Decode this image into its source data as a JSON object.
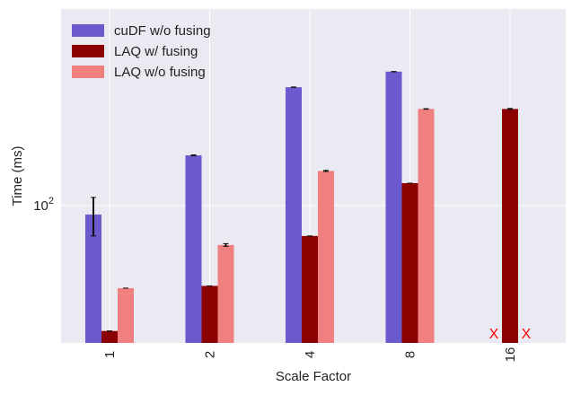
{
  "chart_data": {
    "type": "bar",
    "title": "",
    "xlabel": "Scale Factor",
    "ylabel": "Time (ms)",
    "yscale": "log",
    "ylim": [
      20,
      1000
    ],
    "ytick_values": [
      100
    ],
    "ytick_labels": [
      "10^2"
    ],
    "categories": [
      "1",
      "2",
      "4",
      "8",
      "16"
    ],
    "series": [
      {
        "name": "cuDF w/o fusing",
        "color": "#6a5acd",
        "values": [
          90,
          180,
          400,
          480,
          null
        ],
        "errors": [
          20,
          1,
          1,
          1,
          null
        ]
      },
      {
        "name": "LAQ w/ fusing",
        "color": "#8b0000",
        "values": [
          23,
          39,
          70,
          130,
          310
        ],
        "errors": [
          0,
          0,
          0,
          0,
          2
        ]
      },
      {
        "name": "LAQ w/o fusing",
        "color": "#f08080",
        "values": [
          38,
          63,
          150,
          310,
          null
        ],
        "errors": [
          0,
          1,
          1,
          1,
          null
        ]
      }
    ],
    "missing_marker": "X",
    "legend": "top-left",
    "grid": true
  }
}
